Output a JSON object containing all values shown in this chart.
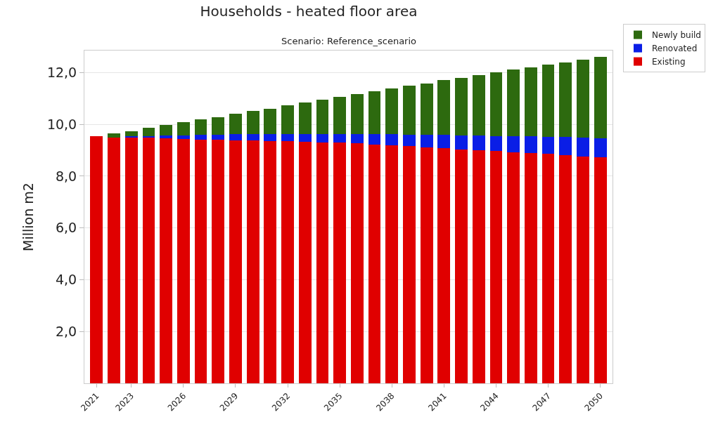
{
  "chart_data": {
    "type": "bar",
    "title": "Households - heated floor area",
    "subtitle": "Scenario: Reference_scenario",
    "ylabel": "Million m2",
    "categories": [
      "2021",
      null,
      "2023",
      null,
      null,
      "2026",
      null,
      null,
      "2029",
      null,
      null,
      "2032",
      null,
      null,
      "2035",
      null,
      null,
      "2038",
      null,
      null,
      "2041",
      null,
      null,
      "2044",
      null,
      null,
      "2047",
      null,
      null,
      "2050"
    ],
    "stacked": true,
    "series": [
      {
        "name": "Existing",
        "color": "#e00000",
        "values": [
          9.55,
          9.5,
          9.49,
          9.48,
          9.46,
          9.44,
          9.42,
          9.4,
          9.39,
          9.37,
          9.36,
          9.34,
          9.32,
          9.3,
          9.29,
          9.26,
          9.23,
          9.19,
          9.16,
          9.12,
          9.08,
          9.04,
          9.01,
          8.97,
          8.93,
          8.89,
          8.86,
          8.81,
          8.77,
          8.73
        ]
      },
      {
        "name": "Renovated",
        "color": "#0a1ee6",
        "values": [
          0,
          null,
          0.04,
          0.06,
          0.1,
          0.13,
          0.17,
          0.21,
          0.24,
          0.26,
          0.27,
          0.29,
          0.31,
          0.33,
          0.34,
          0.37,
          0.4,
          0.44,
          0.45,
          0.48,
          0.51,
          0.53,
          0.55,
          0.58,
          0.61,
          0.64,
          0.66,
          0.7,
          0.73,
          0.74
        ]
      },
      {
        "name": "Newly build",
        "color": "#2d6a0f",
        "values": [
          0,
          0.14,
          0.2,
          0.32,
          0.41,
          0.51,
          0.59,
          0.67,
          0.78,
          0.88,
          0.98,
          1.1,
          1.22,
          1.33,
          1.43,
          1.55,
          1.64,
          1.75,
          1.88,
          1.98,
          2.11,
          2.23,
          2.34,
          2.45,
          2.57,
          2.68,
          2.79,
          2.89,
          3.0,
          3.13
        ]
      }
    ],
    "ylim": [
      0,
      12.85
    ],
    "yticks": [
      {
        "value": 2,
        "label": "2,0"
      },
      {
        "value": 4,
        "label": "4,0"
      },
      {
        "value": 6,
        "label": "6,0"
      },
      {
        "value": 8,
        "label": "8,0"
      },
      {
        "value": 10,
        "label": "10,0"
      },
      {
        "value": 12,
        "label": "12,0"
      }
    ],
    "grid": "y",
    "legend": "top right"
  }
}
